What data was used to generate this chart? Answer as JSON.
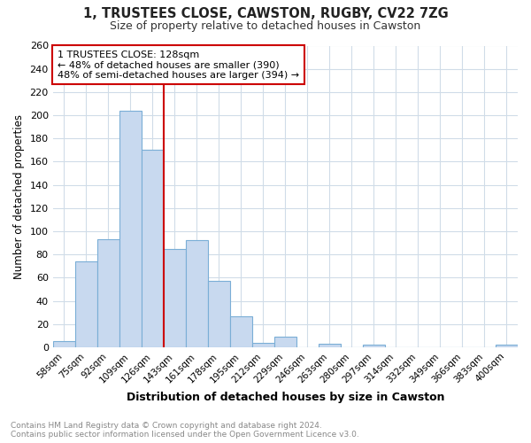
{
  "title1": "1, TRUSTEES CLOSE, CAWSTON, RUGBY, CV22 7ZG",
  "title2": "Size of property relative to detached houses in Cawston",
  "xlabel": "Distribution of detached houses by size in Cawston",
  "ylabel": "Number of detached properties",
  "categories": [
    "58sqm",
    "75sqm",
    "92sqm",
    "109sqm",
    "126sqm",
    "143sqm",
    "161sqm",
    "178sqm",
    "195sqm",
    "212sqm",
    "229sqm",
    "246sqm",
    "263sqm",
    "280sqm",
    "297sqm",
    "314sqm",
    "332sqm",
    "349sqm",
    "366sqm",
    "383sqm",
    "400sqm"
  ],
  "values": [
    5,
    74,
    93,
    204,
    170,
    85,
    92,
    57,
    27,
    4,
    9,
    0,
    3,
    0,
    2,
    0,
    0,
    0,
    0,
    0,
    2
  ],
  "bar_color": "#c8d9ef",
  "bar_edge_color": "#7aaed6",
  "vline_x": 4.5,
  "vline_color": "#cc0000",
  "annotation_title": "1 TRUSTEES CLOSE: 128sqm",
  "annotation_line1": "← 48% of detached houses are smaller (390)",
  "annotation_line2": "48% of semi-detached houses are larger (394) →",
  "annotation_box_color": "#cc0000",
  "ylim": [
    0,
    260
  ],
  "yticks": [
    0,
    20,
    40,
    60,
    80,
    100,
    120,
    140,
    160,
    180,
    200,
    220,
    240,
    260
  ],
  "footer1": "Contains HM Land Registry data © Crown copyright and database right 2024.",
  "footer2": "Contains public sector information licensed under the Open Government Licence v3.0.",
  "bg_color": "#ffffff",
  "plot_bg_color": "#ffffff",
  "grid_color": "#d0dce8"
}
